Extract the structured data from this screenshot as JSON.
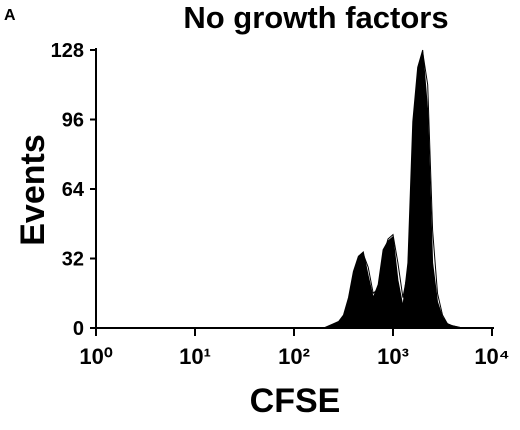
{
  "panel_label": "A",
  "chart_data": {
    "type": "histogram-line",
    "title": "No growth factors",
    "x_label": "CFSE",
    "y_label": "Events",
    "xscale": "log",
    "xlim": [
      1,
      10000
    ],
    "xticks": [
      {
        "value": 1,
        "label": "10⁰"
      },
      {
        "value": 10,
        "label": "10¹"
      },
      {
        "value": 100,
        "label": "10²"
      },
      {
        "value": 1000,
        "label": "10³"
      },
      {
        "value": 10000,
        "label": "10⁴"
      }
    ],
    "ylim": [
      0,
      128
    ],
    "yticks": [
      0,
      32,
      64,
      96,
      128
    ],
    "x": [
      200,
      224,
      251,
      282,
      316,
      355,
      398,
      447,
      501,
      562,
      631,
      708,
      794,
      891,
      1000,
      1122,
      1259,
      1413,
      1585,
      1778,
      1995,
      2239,
      2512,
      2818,
      3162,
      3548,
      3981,
      5012
    ],
    "series": [
      {
        "color": "#000000",
        "fill": true,
        "values": [
          0,
          1,
          2,
          3,
          6,
          14,
          26,
          33,
          35,
          24,
          14,
          20,
          36,
          40,
          42,
          22,
          10,
          30,
          95,
          120,
          128,
          100,
          30,
          12,
          5,
          2,
          1,
          0
        ]
      },
      {
        "color": "#000000",
        "fill": false,
        "values": [
          0,
          0,
          1,
          2,
          4,
          10,
          22,
          31,
          34,
          28,
          16,
          18,
          33,
          41,
          43,
          30,
          14,
          26,
          85,
          118,
          127,
          112,
          45,
          16,
          6,
          2,
          1,
          0
        ]
      }
    ]
  }
}
